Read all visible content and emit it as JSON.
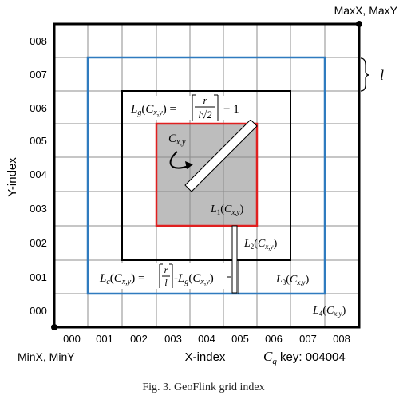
{
  "corners": {
    "max": "MaxX, MaxY",
    "min": "MinX, MinY"
  },
  "axes": {
    "y_label": "Y-index",
    "x_label": "X-index",
    "y_ticks": [
      "008",
      "007",
      "006",
      "005",
      "004",
      "003",
      "002",
      "001",
      "000"
    ],
    "x_ticks": [
      "000",
      "001",
      "002",
      "003",
      "004",
      "005",
      "006",
      "007",
      "008"
    ]
  },
  "key": {
    "prefix": "C",
    "sub": "q",
    "suffix": " key: 004004"
  },
  "cell_width_label": "l",
  "cell_label": {
    "main": "C",
    "sub": "x,y"
  },
  "layers": {
    "l1": {
      "main": "L",
      "sub": "1",
      "arg": "C",
      "argsub": "x,y"
    },
    "l2": {
      "main": "L",
      "sub": "2",
      "arg": "C",
      "argsub": "x,y"
    },
    "l3": {
      "main": "L",
      "sub": "3",
      "arg": "C",
      "argsub": "x,y"
    },
    "l4": {
      "main": "L",
      "sub": "4",
      "arg": "C",
      "argsub": "x,y"
    }
  },
  "formula_lg": {
    "lhs": "L",
    "lhs_sub": "g",
    "arg": "C",
    "arg_sub": "x,y",
    "num": "r",
    "den": "l√2",
    "minus_one": "− 1"
  },
  "formula_lc": {
    "lhs": "L",
    "lhs_sub": "c",
    "arg": "C",
    "arg_sub": "x,y",
    "num": "r",
    "den": "l",
    "tail_main": "L",
    "tail_sub": "g",
    "tail_arg": "C",
    "tail_arg_sub": "x,y"
  },
  "colors": {
    "grid": "#8c8c8c",
    "outer": "#000000",
    "blue": "#2f7bbf",
    "red": "#e02020",
    "shade": "#bdbdbd"
  },
  "caption": "Fig. 3.   GeoFlink grid index"
}
